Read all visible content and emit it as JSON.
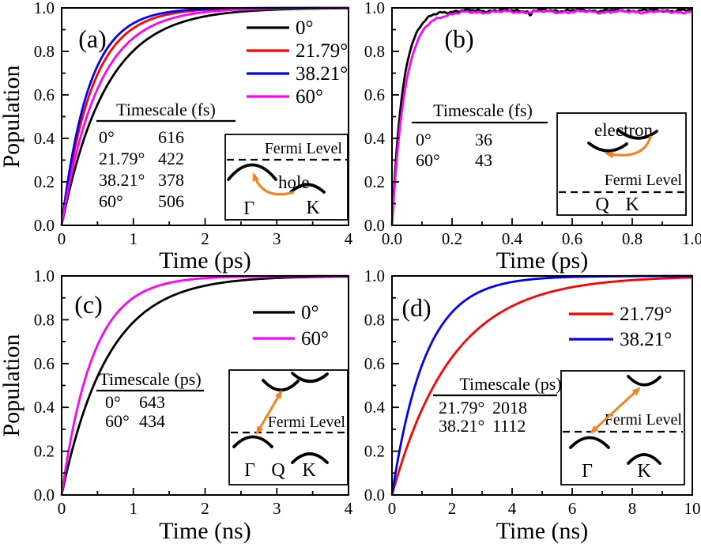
{
  "figure": {
    "background": "#ffffff"
  },
  "chart_data": [
    {
      "id": "a",
      "type": "line",
      "panel_label": "(a)",
      "xlabel": "Time (ps)",
      "ylabel": "Population",
      "xlim": [
        0,
        4
      ],
      "ylim": [
        0,
        1
      ],
      "grid": false,
      "x_ticks": {
        "values": [
          0,
          1,
          2,
          3,
          4
        ],
        "labels": [
          "0",
          "1",
          "2",
          "3",
          "4"
        ],
        "minor_step": 0.5
      },
      "y_ticks": {
        "values": [
          0,
          0.2,
          0.4,
          0.6,
          0.8,
          1
        ],
        "labels": [
          "0.0",
          "0.2",
          "0.4",
          "0.6",
          "0.8",
          "1.0"
        ],
        "minor_step": 0.1
      },
      "legend": {
        "position": "top-right",
        "entries": [
          {
            "label": "0°",
            "color": "#000000"
          },
          {
            "label": "21.79°",
            "color": "#ff0000"
          },
          {
            "label": "38.21°",
            "color": "#0000ff"
          },
          {
            "label": "60°",
            "color": "#ff00ff"
          }
        ]
      },
      "series": [
        {
          "name": "0°",
          "color": "#000000",
          "model": "y = 1 - exp(-t/tau)",
          "tau": 0.616,
          "tau_label": "616 fs",
          "sampled_points": {
            "x": [
              0,
              0.25,
              0.5,
              1,
              1.5,
              2,
              3,
              4
            ],
            "y": [
              0,
              0.334,
              0.556,
              0.803,
              0.913,
              0.961,
              0.992,
              0.998
            ]
          }
        },
        {
          "name": "21.79°",
          "color": "#ff0000",
          "model": "y = 1 - exp(-t/tau)",
          "tau": 0.422,
          "tau_label": "422 fs",
          "sampled_points": {
            "x": [
              0,
              0.25,
              0.5,
              1,
              1.5,
              2,
              3,
              4
            ],
            "y": [
              0,
              0.447,
              0.694,
              0.906,
              0.971,
              0.991,
              0.999,
              1.0
            ]
          }
        },
        {
          "name": "38.21°",
          "color": "#0000ff",
          "model": "y = 1 - exp(-t/tau)",
          "tau": 0.378,
          "tau_label": "378 fs",
          "sampled_points": {
            "x": [
              0,
              0.25,
              0.5,
              1,
              1.5,
              2,
              3,
              4
            ],
            "y": [
              0,
              0.484,
              0.734,
              0.929,
              0.981,
              0.995,
              0.999,
              1.0
            ]
          }
        },
        {
          "name": "60°",
          "color": "#ff00ff",
          "model": "y = 1 - exp(-t/tau)",
          "tau": 0.506,
          "tau_label": "506 fs",
          "sampled_points": {
            "x": [
              0,
              0.25,
              0.5,
              1,
              1.5,
              2,
              3,
              4
            ],
            "y": [
              0,
              0.39,
              0.628,
              0.861,
              0.948,
              0.981,
              0.997,
              1.0
            ]
          }
        }
      ],
      "timescale_table": {
        "title": "Timescale (fs)",
        "rows": [
          [
            "0°",
            "616"
          ],
          [
            "21.79°",
            "422"
          ],
          [
            "38.21°",
            "378"
          ],
          [
            "60°",
            "506"
          ]
        ]
      },
      "inset": {
        "diagram": "hole-transfer-gamma-k",
        "fermi_label": "Fermi Level",
        "carrier_label": "hole",
        "band_labels": [
          "Γ",
          "K"
        ],
        "arrow_color": "#f5821f"
      }
    },
    {
      "id": "b",
      "type": "line",
      "panel_label": "(b)",
      "xlabel": "Time (ps)",
      "ylabel": "",
      "xlim": [
        0,
        1
      ],
      "ylim": [
        0,
        1
      ],
      "grid": false,
      "x_ticks": {
        "values": [
          0,
          0.2,
          0.4,
          0.6,
          0.8,
          1
        ],
        "labels": [
          "0.0",
          "0.2",
          "0.4",
          "0.6",
          "0.8",
          "1.0"
        ],
        "minor_step": 0.1
      },
      "y_ticks": {
        "values": [
          0,
          0.2,
          0.4,
          0.6,
          0.8,
          1
        ],
        "labels": [
          "0.0",
          "0.2",
          "0.4",
          "0.6",
          "0.8",
          "1.0"
        ],
        "minor_step": 0.1
      },
      "legend": null,
      "series": [
        {
          "name": "0°",
          "color": "#000000",
          "model": "y = plateau*(1 - exp(-t/tau)) + noise",
          "tau": 0.036,
          "tau_label": "36 fs",
          "plateau": 0.988,
          "noise": {
            "amp": 0.008,
            "freqs": [
              52,
              150,
              340
            ],
            "phases": [
              0.8,
              2.0,
              4.5
            ]
          },
          "spikes": [
            {
              "t": 0.46,
              "depth": 0.022,
              "width": 0.007
            }
          ],
          "sampled_points": {
            "x": [
              0,
              0.025,
              0.05,
              0.1,
              0.2,
              0.4,
              0.6,
              0.8,
              1.0
            ],
            "y": [
              0,
              0.49,
              0.74,
              0.93,
              0.98,
              0.99,
              0.99,
              0.98,
              0.99
            ]
          }
        },
        {
          "name": "60°",
          "color": "#ff00ff",
          "model": "y = plateau*(1 - exp(-t/tau)) + noise",
          "tau": 0.043,
          "tau_label": "43 fs",
          "plateau": 0.982,
          "noise": {
            "amp": 0.008,
            "freqs": [
              48,
              133,
              310
            ],
            "phases": [
              2.6,
              0.9,
              5.1
            ]
          },
          "sampled_points": {
            "x": [
              0,
              0.025,
              0.05,
              0.1,
              0.2,
              0.4,
              0.6,
              0.8,
              1.0
            ],
            "y": [
              0,
              0.43,
              0.68,
              0.89,
              0.97,
              0.98,
              0.98,
              0.98,
              0.98
            ]
          }
        }
      ],
      "timescale_table": {
        "title": "Timescale (fs)",
        "rows": [
          [
            "0°",
            "36"
          ],
          [
            "60°",
            "43"
          ]
        ]
      },
      "inset": {
        "diagram": "electron-transfer-q-k",
        "fermi_label": "Fermi Level",
        "carrier_label": "electron",
        "band_labels": [
          "Q",
          "K"
        ],
        "arrow_color": "#f5821f"
      }
    },
    {
      "id": "c",
      "type": "line",
      "panel_label": "(c)",
      "xlabel": "Time (ns)",
      "ylabel": "Population",
      "xlim": [
        0,
        4
      ],
      "ylim": [
        0,
        1
      ],
      "grid": false,
      "x_ticks": {
        "values": [
          0,
          1,
          2,
          3,
          4
        ],
        "labels": [
          "0",
          "1",
          "2",
          "3",
          "4"
        ],
        "minor_step": 0.5
      },
      "y_ticks": {
        "values": [
          0,
          0.2,
          0.4,
          0.6,
          0.8,
          1
        ],
        "labels": [
          "0.0",
          "0.2",
          "0.4",
          "0.6",
          "0.8",
          "1.0"
        ],
        "minor_step": 0.1
      },
      "legend": {
        "position": "top-right",
        "entries": [
          {
            "label": "0°",
            "color": "#000000"
          },
          {
            "label": "60°",
            "color": "#ff00ff"
          }
        ]
      },
      "series": [
        {
          "name": "0°",
          "color": "#000000",
          "model": "y = 1 - exp(-t/tau)",
          "tau": 0.643,
          "tau_label": "643 ps",
          "sampled_points": {
            "x": [
              0,
              0.25,
              0.5,
              1,
              1.5,
              2,
              3,
              4
            ],
            "y": [
              0,
              0.322,
              0.541,
              0.789,
              0.903,
              0.955,
              0.991,
              0.998
            ]
          }
        },
        {
          "name": "60°",
          "color": "#ff00ff",
          "model": "y = 1 - exp(-t/tau)",
          "tau": 0.434,
          "tau_label": "434 ps",
          "sampled_points": {
            "x": [
              0,
              0.25,
              0.5,
              1,
              1.5,
              2,
              3,
              4
            ],
            "y": [
              0,
              0.438,
              0.684,
              0.9,
              0.968,
              0.99,
              0.999,
              1.0
            ]
          }
        }
      ],
      "timescale_table": {
        "title": "Timescale (ps)",
        "rows": [
          [
            "0°",
            "643"
          ],
          [
            "60°",
            "434"
          ]
        ]
      },
      "inset": {
        "diagram": "recombination-gamma-q-k",
        "fermi_label": "Fermi Level",
        "carrier_label": "",
        "band_labels": [
          "Γ",
          "Q",
          "K"
        ],
        "arrow_color": "#f5821f"
      }
    },
    {
      "id": "d",
      "type": "line",
      "panel_label": "(d)",
      "xlabel": "Time (ns)",
      "ylabel": "",
      "xlim": [
        0,
        10
      ],
      "ylim": [
        0,
        1
      ],
      "grid": false,
      "x_ticks": {
        "values": [
          0,
          2,
          4,
          6,
          8,
          10
        ],
        "labels": [
          "0",
          "2",
          "4",
          "6",
          "8",
          "10"
        ],
        "minor_step": 1
      },
      "y_ticks": {
        "values": [
          0,
          0.2,
          0.4,
          0.6,
          0.8,
          1
        ],
        "labels": [
          "0.0",
          "0.2",
          "0.4",
          "0.6",
          "0.8",
          "1.0"
        ],
        "minor_step": 0.1
      },
      "legend": {
        "position": "top-right",
        "entries": [
          {
            "label": "21.79°",
            "color": "#ff0000"
          },
          {
            "label": "38.21°",
            "color": "#0000ff"
          }
        ]
      },
      "series": [
        {
          "name": "21.79°",
          "color": "#ff0000",
          "model": "y = 1 - exp(-t/tau)",
          "tau": 2.018,
          "tau_label": "2018 ps",
          "sampled_points": {
            "x": [
              0,
              0.5,
              1,
              2,
              3,
              4,
              6,
              8,
              10
            ],
            "y": [
              0,
              0.22,
              0.391,
              0.629,
              0.774,
              0.863,
              0.949,
              0.981,
              0.993
            ]
          }
        },
        {
          "name": "38.21°",
          "color": "#0000ff",
          "model": "y = 1 - exp(-t/tau)",
          "tau": 1.112,
          "tau_label": "1112 ps",
          "sampled_points": {
            "x": [
              0,
              0.5,
              1,
              2,
              3,
              4,
              6,
              8,
              10
            ],
            "y": [
              0,
              0.362,
              0.593,
              0.834,
              0.933,
              0.973,
              0.995,
              0.999,
              1.0
            ]
          }
        }
      ],
      "timescale_table": {
        "title": "Timescale (ps)",
        "rows": [
          [
            "21.79°",
            "2018"
          ],
          [
            "38.21°",
            "1112"
          ]
        ]
      },
      "inset": {
        "diagram": "recombination-gamma-k",
        "fermi_label": "Fermi Level",
        "carrier_label": "",
        "band_labels": [
          "Γ",
          "K"
        ],
        "arrow_color": "#f5821f"
      }
    }
  ]
}
